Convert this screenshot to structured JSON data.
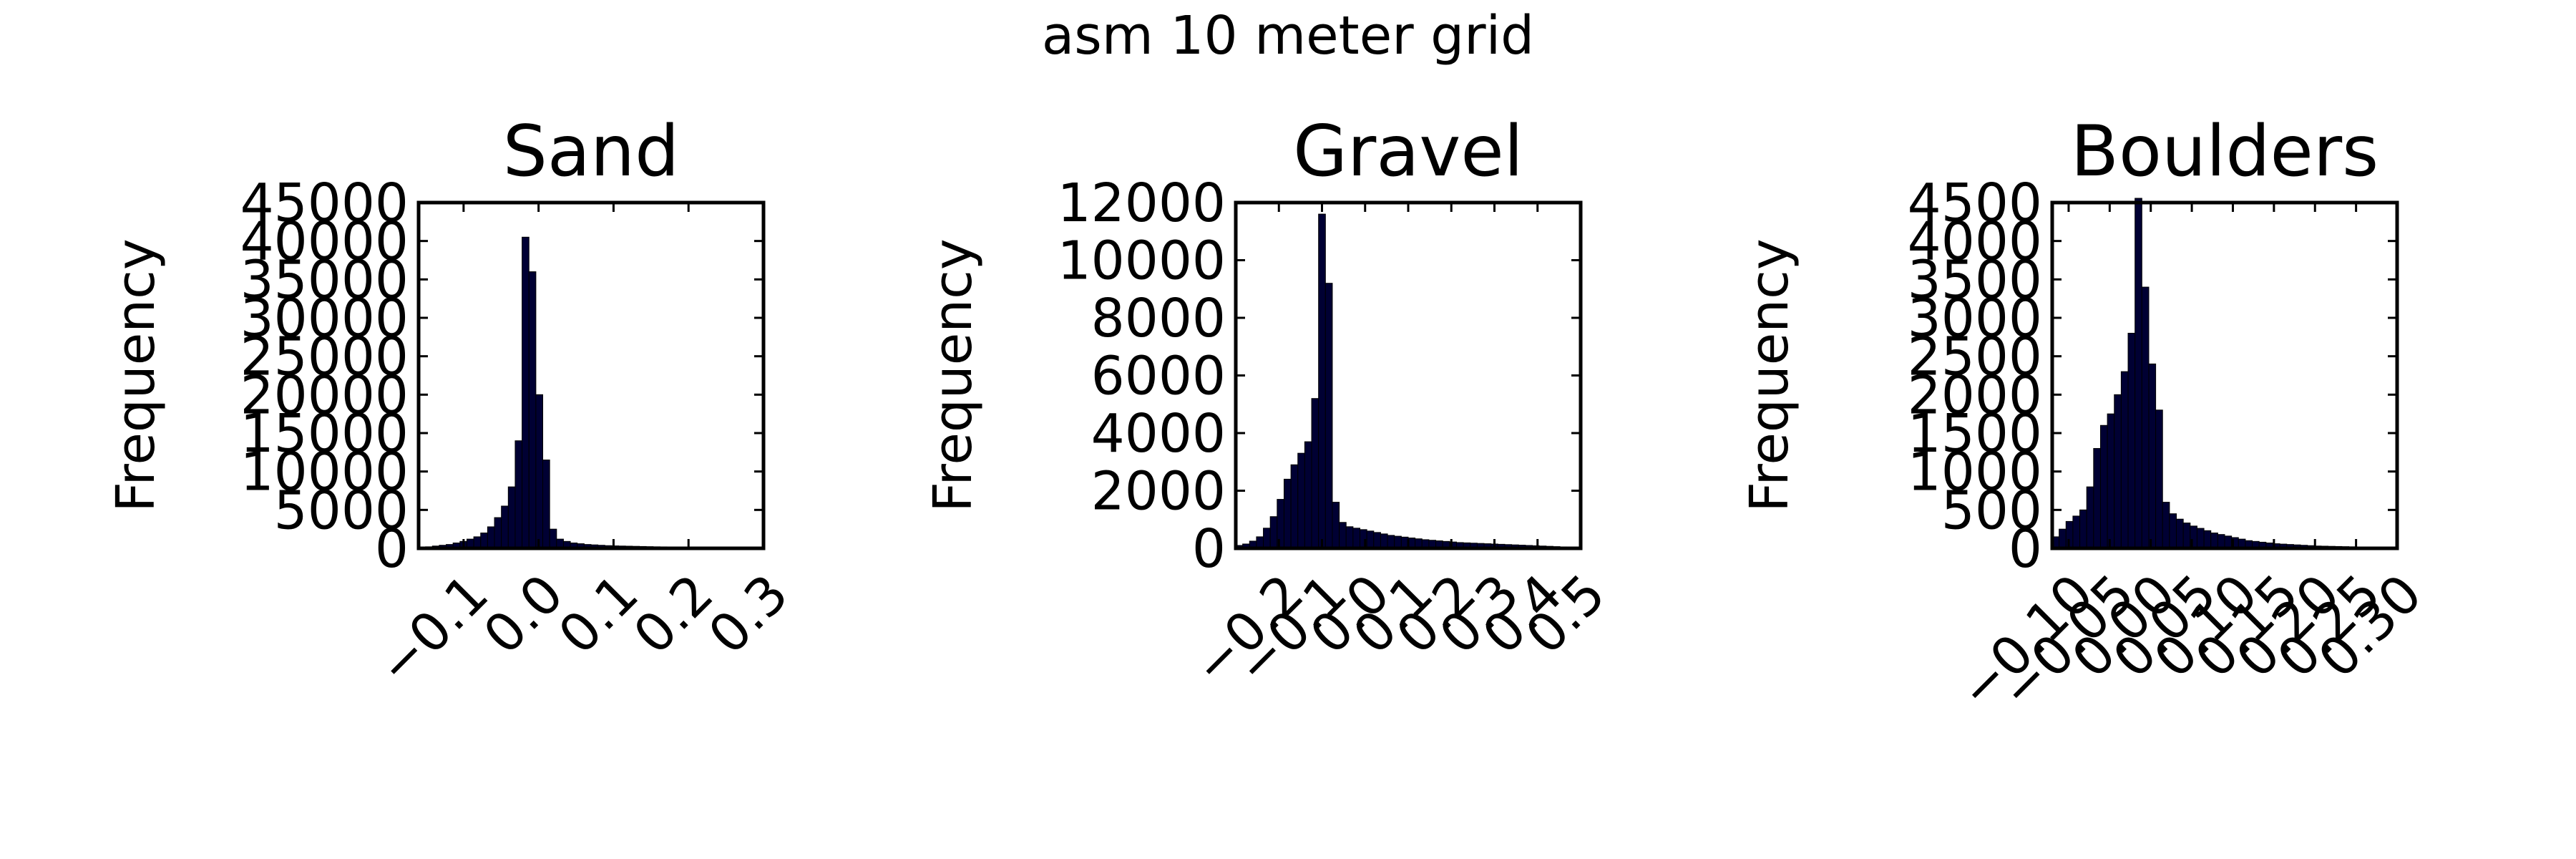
{
  "figure": {
    "suptitle": "asm 10 meter grid"
  },
  "chart_data": [
    {
      "type": "bar",
      "title": "Sand",
      "xlabel": "",
      "ylabel": "Frequency",
      "xlim": [
        -0.16,
        0.3
      ],
      "ylim": [
        0,
        45000
      ],
      "xticks": [
        -0.1,
        0.0,
        0.1,
        0.2,
        0.3
      ],
      "xtick_labels": [
        "−0.1",
        "0.0",
        "0.1",
        "0.2",
        "0.3"
      ],
      "yticks": [
        0,
        5000,
        10000,
        15000,
        20000,
        25000,
        30000,
        35000,
        40000,
        45000
      ],
      "ytick_labels": [
        "0",
        "5000",
        "10000",
        "15000",
        "20000",
        "25000",
        "30000",
        "35000",
        "40000",
        "45000"
      ],
      "bin_start": -0.16,
      "bin_width": 0.0092,
      "counts": [
        100,
        200,
        300,
        400,
        500,
        700,
        900,
        1200,
        1500,
        2000,
        2800,
        4000,
        5500,
        8000,
        14000,
        40500,
        36000,
        20000,
        11500,
        2500,
        1200,
        900,
        700,
        600,
        500,
        450,
        400,
        350,
        320,
        300,
        280,
        260,
        240,
        220,
        200,
        190,
        180,
        170,
        160,
        150,
        140,
        130,
        120,
        110,
        100,
        90,
        80,
        70,
        60,
        50
      ],
      "bar_color": "#000033",
      "grid": false
    },
    {
      "type": "bar",
      "title": "Gravel",
      "xlabel": "",
      "ylabel": "Frequency",
      "xlim": [
        -0.3,
        0.5
      ],
      "ylim": [
        0,
        12000
      ],
      "xticks": [
        -0.2,
        -0.1,
        0.0,
        0.1,
        0.2,
        0.3,
        0.4,
        0.5
      ],
      "xtick_labels": [
        "−0.2",
        "−0.1",
        "0.0",
        "0.1",
        "0.2",
        "0.3",
        "0.4",
        "0.5"
      ],
      "yticks": [
        0,
        2000,
        4000,
        6000,
        8000,
        10000,
        12000
      ],
      "ytick_labels": [
        "0",
        "2000",
        "4000",
        "6000",
        "8000",
        "10000",
        "12000"
      ],
      "bin_start": -0.3,
      "bin_width": 0.016,
      "counts": [
        100,
        150,
        250,
        400,
        700,
        1100,
        1700,
        2400,
        2900,
        3300,
        3700,
        5200,
        11600,
        9200,
        1600,
        900,
        750,
        700,
        650,
        600,
        550,
        500,
        450,
        420,
        390,
        360,
        330,
        300,
        280,
        260,
        240,
        220,
        200,
        190,
        180,
        170,
        160,
        150,
        140,
        130,
        120,
        110,
        100,
        90,
        80,
        70,
        60,
        50,
        40,
        30
      ],
      "bar_color": "#000033",
      "grid": false
    },
    {
      "type": "bar",
      "title": "Boulders",
      "xlabel": "",
      "ylabel": "Frequency",
      "xlim": [
        -0.12,
        0.3
      ],
      "ylim": [
        0,
        4500
      ],
      "xticks": [
        -0.1,
        -0.05,
        0.0,
        0.05,
        0.1,
        0.15,
        0.2,
        0.25,
        0.3
      ],
      "xtick_labels": [
        "−0.10",
        "−0.05",
        "0.00",
        "0.05",
        "0.10",
        "0.15",
        "0.20",
        "0.25",
        "0.30"
      ],
      "yticks": [
        0,
        500,
        1000,
        1500,
        2000,
        2500,
        3000,
        3500,
        4000,
        4500
      ],
      "ytick_labels": [
        "0",
        "500",
        "1000",
        "1500",
        "2000",
        "2500",
        "3000",
        "3500",
        "4000",
        "4500"
      ],
      "bin_start": -0.12,
      "bin_width": 0.0084,
      "counts": [
        150,
        250,
        350,
        420,
        500,
        800,
        1300,
        1600,
        1750,
        2000,
        2300,
        2800,
        4600,
        3400,
        2400,
        1800,
        600,
        450,
        380,
        330,
        290,
        260,
        230,
        200,
        180,
        160,
        140,
        120,
        100,
        90,
        80,
        70,
        60,
        55,
        50,
        45,
        40,
        35,
        30,
        28,
        26,
        24,
        22,
        20,
        18,
        16,
        14,
        12,
        10,
        8
      ],
      "bar_color": "#000033",
      "grid": false
    }
  ]
}
